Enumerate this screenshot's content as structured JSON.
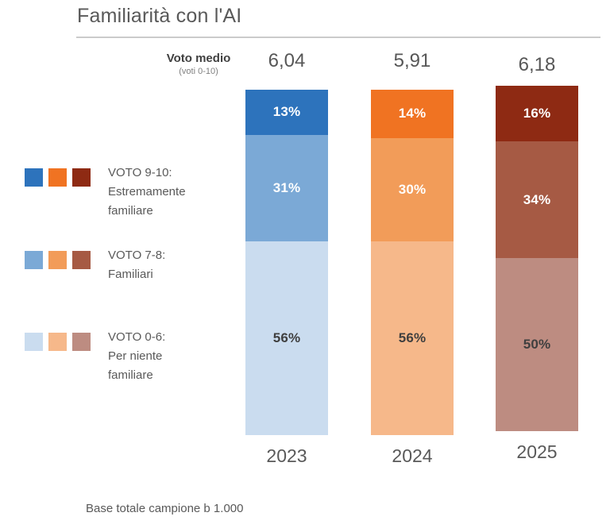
{
  "title": "Familiarità con l'AI",
  "mean_header": {
    "label": "Voto medio",
    "sublabel": "(voti 0-10)"
  },
  "footer": "Base totale campione b 1.000",
  "chart_data": {
    "type": "bar",
    "stacked": true,
    "title": "Familiarità con l'AI",
    "categories": [
      "2023",
      "2024",
      "2025"
    ],
    "series": [
      {
        "name": "VOTO 9-10: Estremamente familiare",
        "values": [
          13,
          14,
          16
        ]
      },
      {
        "name": "VOTO 7-8: Familiari",
        "values": [
          31,
          30,
          34
        ]
      },
      {
        "name": "VOTO 0-6: Per niente familiare",
        "values": [
          56,
          56,
          50
        ]
      }
    ],
    "means": {
      "label": "Voto medio",
      "sublabel": "(voti 0-10)",
      "values": [
        "6,04",
        "5,91",
        "6,18"
      ]
    },
    "unit": "%",
    "ylim": [
      0,
      100
    ],
    "grid": false,
    "legend_position": "left",
    "note": "Base totale campione b 1.000"
  },
  "columns": [
    {
      "year": "2023",
      "mean": "6,04",
      "segments": [
        {
          "label": "13%",
          "value": 13,
          "color": "#2d73bc",
          "text_color": "#ffffff"
        },
        {
          "label": "31%",
          "value": 31,
          "color": "#7ba9d6",
          "text_color": "#ffffff"
        },
        {
          "label": "56%",
          "value": 56,
          "color": "#cadcef",
          "text_color": "#3f3f3f"
        }
      ]
    },
    {
      "year": "2024",
      "mean": "5,91",
      "segments": [
        {
          "label": "14%",
          "value": 14,
          "color": "#f07322",
          "text_color": "#ffffff"
        },
        {
          "label": "30%",
          "value": 30,
          "color": "#f29c59",
          "text_color": "#ffffff"
        },
        {
          "label": "56%",
          "value": 56,
          "color": "#f6b88a",
          "text_color": "#3f3f3f"
        }
      ]
    },
    {
      "year": "2025",
      "mean": "6,18",
      "segments": [
        {
          "label": "16%",
          "value": 16,
          "color": "#8e2a13",
          "text_color": "#ffffff"
        },
        {
          "label": "34%",
          "value": 34,
          "color": "#a65a44",
          "text_color": "#ffffff"
        },
        {
          "label": "50%",
          "value": 50,
          "color": "#bd8c81",
          "text_color": "#3f3f3f"
        }
      ]
    }
  ],
  "legend": {
    "rows": [
      {
        "swatches": [
          "#2d73bc",
          "#f07322",
          "#8e2a13"
        ],
        "lines": [
          "VOTO 9-10:",
          "Estremamente",
          "familiare"
        ]
      },
      {
        "swatches": [
          "#7ba9d6",
          "#f29c59",
          "#a65a44"
        ],
        "lines": [
          "VOTO 7-8:",
          "Familiari"
        ]
      },
      {
        "swatches": [
          "#cadcef",
          "#f6b88a",
          "#bd8c81"
        ],
        "lines": [
          "VOTO 0-6:",
          "Per niente",
          "familiare"
        ]
      }
    ]
  }
}
